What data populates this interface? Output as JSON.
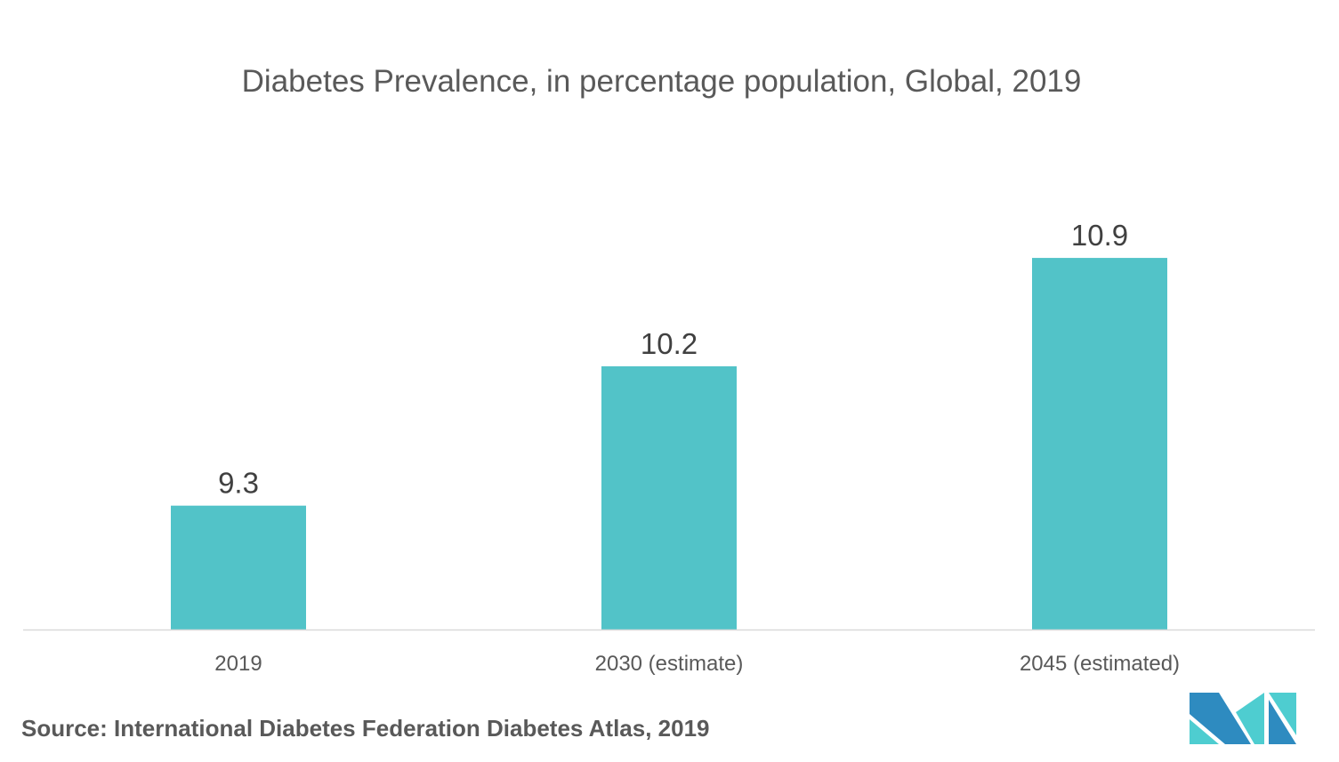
{
  "chart_data": {
    "type": "bar",
    "title": "Diabetes Prevalence, in percentage population, Global, 2019",
    "categories": [
      "2019",
      "2030 (estimate)",
      "2045 (estimated)"
    ],
    "values": [
      9.3,
      10.2,
      10.9
    ],
    "data_labels": [
      "9.3",
      "10.2",
      "10.9"
    ],
    "xlabel": "",
    "ylabel": "",
    "ylim": [
      8.5,
      11.4
    ],
    "grid": false,
    "legend": "none",
    "bar_color": "#52C3C8"
  },
  "source": "Source: International Diabetes Federation Diabetes Atlas, 2019",
  "logo": {
    "colors": [
      "#2E8BC0",
      "#4ECDD0"
    ]
  }
}
